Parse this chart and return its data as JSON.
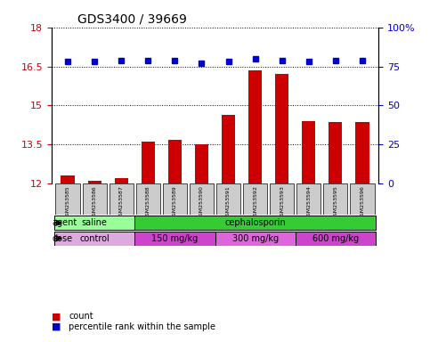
{
  "title": "GDS3400 / 39669",
  "samples": [
    "GSM253585",
    "GSM253586",
    "GSM253587",
    "GSM253588",
    "GSM253589",
    "GSM253590",
    "GSM253591",
    "GSM253592",
    "GSM253593",
    "GSM253594",
    "GSM253595",
    "GSM253596"
  ],
  "counts": [
    12.3,
    12.1,
    12.2,
    13.6,
    13.7,
    13.5,
    14.65,
    16.35,
    16.2,
    14.4,
    14.38,
    14.38
  ],
  "percentiles": [
    78,
    78,
    79,
    79,
    79,
    77,
    78,
    80,
    79,
    78,
    79,
    79
  ],
  "ylim_left": [
    12,
    18
  ],
  "ylim_right": [
    0,
    100
  ],
  "yticks_left": [
    12,
    13.5,
    15,
    16.5,
    18
  ],
  "yticks_right": [
    0,
    25,
    50,
    75,
    100
  ],
  "bar_color": "#cc0000",
  "dot_color": "#0000cc",
  "agent_groups": [
    {
      "label": "saline",
      "start": 0,
      "end": 3,
      "color": "#99ff99"
    },
    {
      "label": "cephalosporin",
      "start": 3,
      "end": 12,
      "color": "#33cc33"
    }
  ],
  "dose_groups": [
    {
      "label": "control",
      "start": 0,
      "end": 3,
      "color": "#ddaadd"
    },
    {
      "label": "150 mg/kg",
      "start": 3,
      "end": 6,
      "color": "#cc44cc"
    },
    {
      "label": "300 mg/kg",
      "start": 6,
      "end": 9,
      "color": "#dd66dd"
    },
    {
      "label": "600 mg/kg",
      "start": 9,
      "end": 12,
      "color": "#cc44cc"
    }
  ],
  "sample_bg_color": "#cccccc",
  "grid_color": "#888888",
  "legend_items": [
    {
      "label": "count",
      "color": "#cc0000",
      "marker": "s"
    },
    {
      "label": "percentile rank within the sample",
      "color": "#0000cc",
      "marker": "s"
    }
  ]
}
